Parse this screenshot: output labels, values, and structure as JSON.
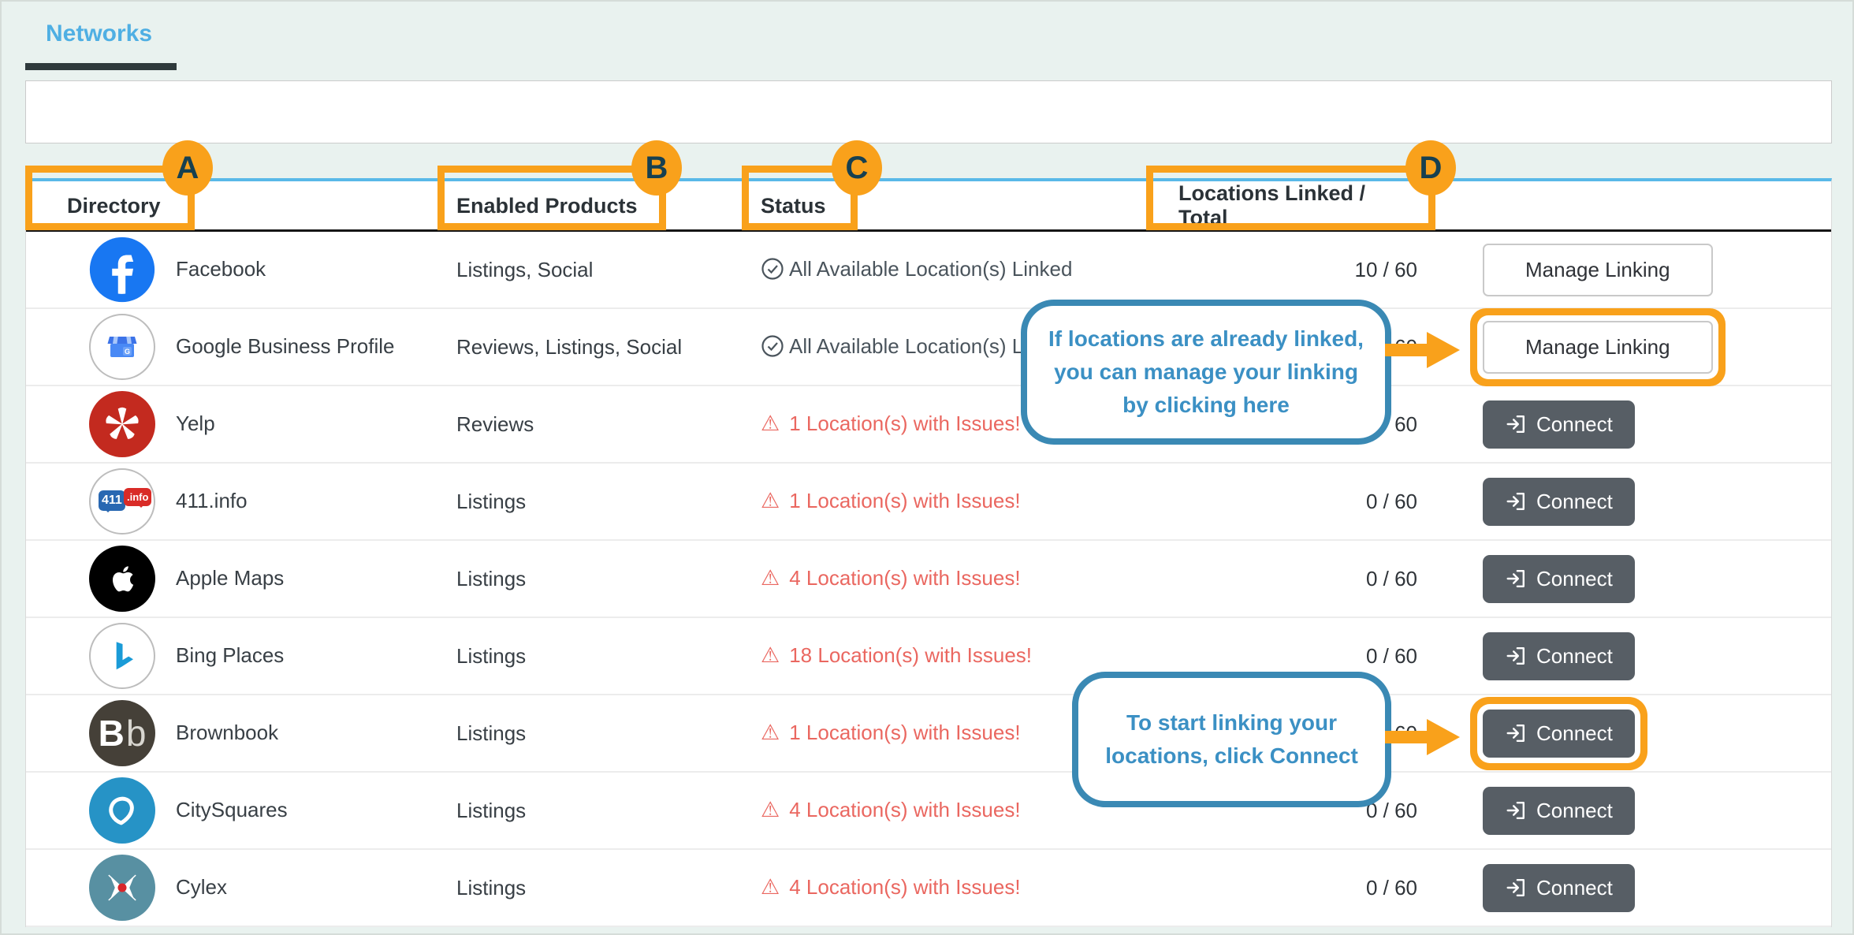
{
  "tab": {
    "label": "Networks"
  },
  "table": {
    "columns": [
      {
        "key": "directory",
        "label": "Directory",
        "badge": "A"
      },
      {
        "key": "products",
        "label": "Enabled Products",
        "badge": "B"
      },
      {
        "key": "status",
        "label": "Status",
        "badge": "C"
      },
      {
        "key": "linked",
        "label": "Locations Linked / Total",
        "badge": "D"
      }
    ],
    "rows": [
      {
        "name": "Facebook",
        "icon": "facebook-icon",
        "products": "Listings, Social",
        "status": {
          "type": "ok",
          "text": "All Available Location(s) Linked"
        },
        "linked": "10 / 60",
        "action": "Manage Linking",
        "highlighted": false
      },
      {
        "name": "Google Business Profile",
        "icon": "google-business-icon",
        "products": "Reviews, Listings, Social",
        "status": {
          "type": "ok",
          "text": "All Available Location(s) Linked"
        },
        "linked": "10 / 60",
        "action": "Manage Linking",
        "highlighted": true
      },
      {
        "name": "Yelp",
        "icon": "yelp-icon",
        "products": "Reviews",
        "status": {
          "type": "issue",
          "text": "1 Location(s) with Issues!"
        },
        "linked": "0 / 60",
        "action": "Connect",
        "highlighted": false
      },
      {
        "name": "411.info",
        "icon": "411-info-icon",
        "products": "Listings",
        "status": {
          "type": "issue",
          "text": "1 Location(s) with Issues!"
        },
        "linked": "0 / 60",
        "action": "Connect",
        "highlighted": false
      },
      {
        "name": "Apple Maps",
        "icon": "apple-maps-icon",
        "products": "Listings",
        "status": {
          "type": "issue",
          "text": "4 Location(s) with Issues!"
        },
        "linked": "0 / 60",
        "action": "Connect",
        "highlighted": false
      },
      {
        "name": "Bing Places",
        "icon": "bing-places-icon",
        "products": "Listings",
        "status": {
          "type": "issue",
          "text": "18 Location(s) with Issues!"
        },
        "linked": "0 / 60",
        "action": "Connect",
        "highlighted": false
      },
      {
        "name": "Brownbook",
        "icon": "brownbook-icon",
        "products": "Listings",
        "status": {
          "type": "issue",
          "text": "1 Location(s) with Issues!"
        },
        "linked": "0 / 60",
        "action": "Connect",
        "highlighted": true
      },
      {
        "name": "CitySquares",
        "icon": "citysquares-icon",
        "products": "Listings",
        "status": {
          "type": "issue",
          "text": "4 Location(s) with Issues!"
        },
        "linked": "0 / 60",
        "action": "Connect",
        "highlighted": false
      },
      {
        "name": "Cylex",
        "icon": "cylex-icon",
        "products": "Listings",
        "status": {
          "type": "issue",
          "text": "4 Location(s) with Issues!"
        },
        "linked": "0 / 60",
        "action": "Connect",
        "highlighted": false
      }
    ]
  },
  "annotations": {
    "badges": [
      "A",
      "B",
      "C",
      "D"
    ],
    "callouts": [
      {
        "text": "If locations are already linked, you can manage your linking by clicking here"
      },
      {
        "text_prefix": "To start linking your locations, click ",
        "text_bold": "Connect"
      }
    ],
    "colors": {
      "highlight_orange": "#F9A11B",
      "callout_blue": "#3A89B4",
      "issue_red": "#EA6760",
      "header_line_blue": "#59B9E8"
    }
  }
}
